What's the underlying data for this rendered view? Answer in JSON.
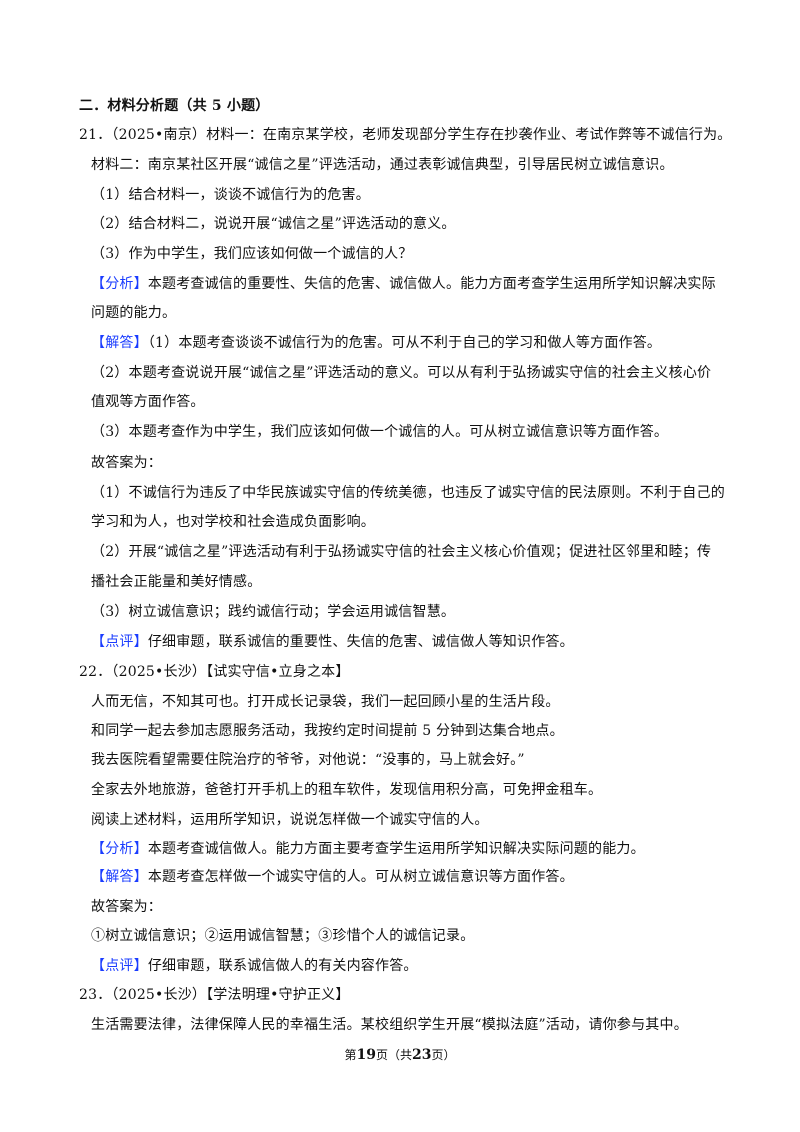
{
  "section_heading": "二．材料分析题（共 5 小题）",
  "lines": [
    {
      "text": "21．（2025•南京）材料一：在南京某学校，老师发现部分学生存在抄袭作业、考试作弊等不诚信行为。"
    },
    {
      "text": "材料二：南京某社区开展“诚信之星”评选活动，通过表彰诚信典型，引导居民树立诚信意识。"
    },
    {
      "text": "（1）结合材料一，谈谈不诚信行为的危害。"
    },
    {
      "text": "（2）结合材料二，说说开展“诚信之星”评选活动的意义。"
    },
    {
      "text": "（3）作为中学生，我们应该如何做一个诚信的人？"
    },
    {
      "tag": "【分析】",
      "text": "本题考查诚信的重要性、失信的危害、诚信做人。能力方面考查学生运用所学知识解决实际"
    },
    {
      "text": "问题的能力。"
    },
    {
      "tag": "【解答】",
      "text": "（1）本题考查谈谈不诚信行为的危害。可从不利于自己的学习和做人等方面作答。"
    },
    {
      "text": "（2）本题考查说说开展“诚信之星”评选活动的意义。可以从有利于弘扬诚实守信的社会主义核心价"
    },
    {
      "text": "值观等方面作答。"
    },
    {
      "text": "（3）本题考查作为中学生，我们应该如何做一个诚信的人。可从树立诚信意识等方面作答。"
    },
    {
      "text": "故答案为："
    },
    {
      "text": "（1）不诚信行为违反了中华民族诚实守信的传统美德，也违反了诚实守信的民法原则。不利于自己的"
    },
    {
      "text": "学习和为人，也对学校和社会造成负面影响。"
    },
    {
      "text": "（2）开展“诚信之星”评选活动有利于弘扬诚实守信的社会主义核心价值观；促进社区邻里和睦；传"
    },
    {
      "text": "播社会正能量和美好情感。"
    },
    {
      "text": "（3）树立诚信意识；践约诚信行动；学会运用诚信智慧。"
    },
    {
      "tag": "【点评】",
      "text": "仔细审题，联系诚信的重要性、失信的危害、诚信做人等知识作答。"
    },
    {
      "text": "22．（2025•长沙）【试实守信•立身之本】"
    },
    {
      "text": "人而无信，不知其可也。打开成长记录袋，我们一起回顾小星的生活片段。"
    },
    {
      "text": "和同学一起去参加志愿服务活动，我按约定时间提前 5 分钟到达集合地点。"
    },
    {
      "text": "我去医院看望需要住院治疗的爷爷，对他说：“没事的，马上就会好。”"
    },
    {
      "text": "全家去外地旅游，爸爸打开手机上的租车软件，发现信用积分高，可免押金租车。"
    },
    {
      "text": "阅读上述材料，运用所学知识，说说怎样做一个诚实守信的人。"
    },
    {
      "tag": "【分析】",
      "text": "本题考查诚信做人。能力方面主要考查学生运用所学知识解决实际问题的能力。"
    },
    {
      "tag": "【解答】",
      "text": "本题考查怎样做一个诚实守信的人。可从树立诚信意识等方面作答。"
    },
    {
      "text": "故答案为："
    },
    {
      "text": "①树立诚信意识；②运用诚信智慧；③珍惜个人的诚信记录。"
    },
    {
      "tag": "【点评】",
      "text": "仔细审题，联系诚信做人的有关内容作答。"
    },
    {
      "text": "23．（2025•长沙）【学法明理•守护正义】"
    },
    {
      "text": "生活需要法律，法律保障人民的幸福生活。某校组织学生开展“模拟法庭”活动，请你参与其中。"
    }
  ],
  "footer": {
    "prefix": "第",
    "page": "19",
    "mid": "页（共",
    "total": "23",
    "suffix": "页）"
  },
  "colors": {
    "tag": "#1a3cff",
    "text": "#111111"
  }
}
